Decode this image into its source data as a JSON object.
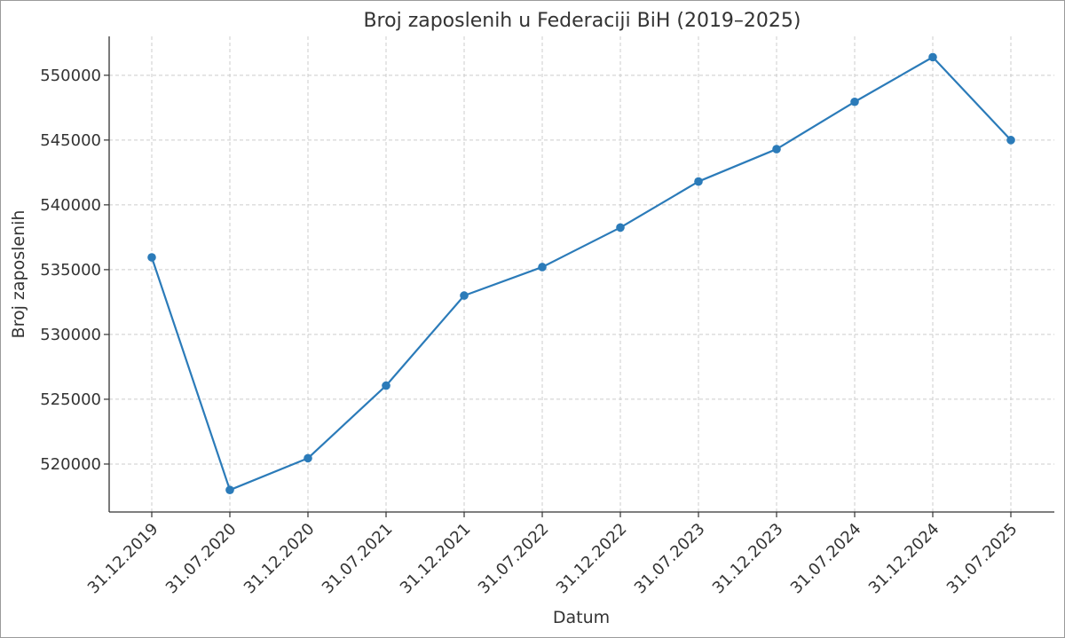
{
  "chart_data": {
    "type": "line",
    "title": "Broj zaposlenih u Federaciji BiH (2019–2025)",
    "xlabel": "Datum",
    "ylabel": "Broj zaposlenih",
    "categories": [
      "31.12.2019",
      "31.07.2020",
      "31.12.2020",
      "31.07.2021",
      "31.12.2021",
      "31.07.2022",
      "31.12.2022",
      "31.07.2023",
      "31.12.2023",
      "31.07.2024",
      "31.12.2024",
      "31.07.2025"
    ],
    "series": [
      {
        "values": [
          535950,
          518000,
          520450,
          526050,
          533000,
          535200,
          538250,
          541800,
          544300,
          547950,
          551400,
          545000
        ]
      }
    ],
    "yticks": [
      520000,
      525000,
      530000,
      535000,
      540000,
      545000,
      550000
    ],
    "ylim": [
      516300,
      553000
    ],
    "grid": true,
    "line_color": "#2b7bb9"
  }
}
